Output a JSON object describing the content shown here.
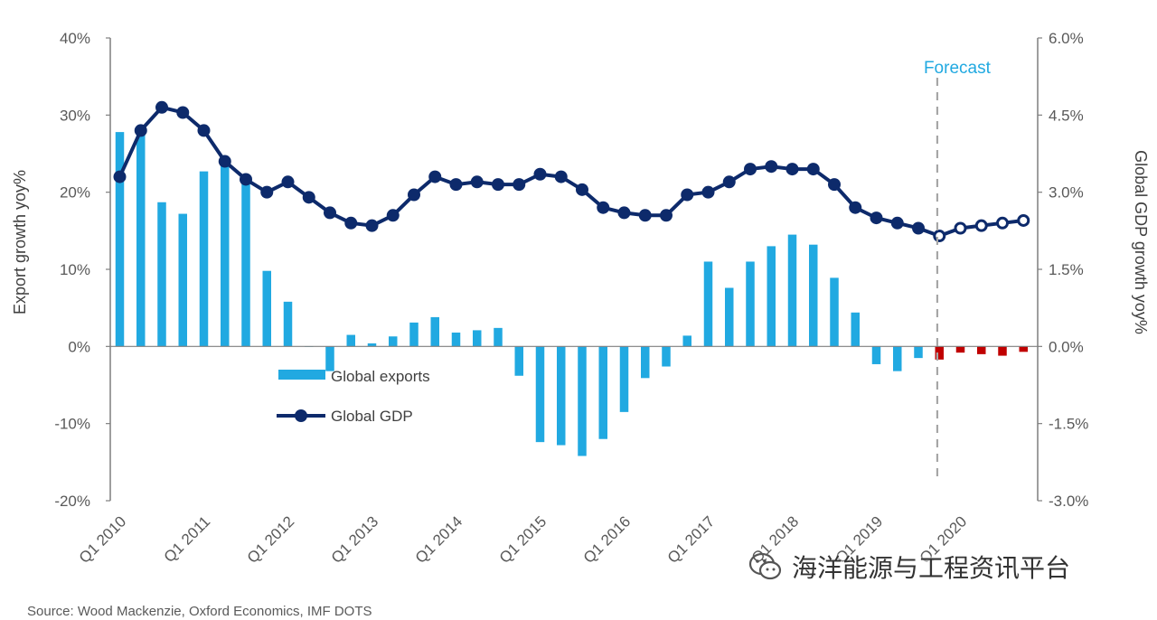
{
  "chart_data": {
    "type": "bar+line",
    "x_tick_labels": [
      "Q1 2010",
      "Q1 2011",
      "Q1 2012",
      "Q1 2013",
      "Q1 2014",
      "Q1 2015",
      "Q1 2016",
      "Q1 2017",
      "Q1 2018",
      "Q1 2019",
      "Q1 2020"
    ],
    "y_left": {
      "label": "Export growth yoy%",
      "ticks": [
        "40%",
        "30%",
        "20%",
        "10%",
        "0%",
        "-10%",
        "-20%"
      ],
      "range": [
        -20,
        40
      ]
    },
    "y_right": {
      "label": "Global GDP growth yoy%",
      "ticks": [
        "6.0%",
        "4.5%",
        "3.0%",
        "1.5%",
        "0.0%",
        "-1.5%",
        "-3.0%"
      ],
      "range": [
        -3.0,
        6.0
      ]
    },
    "forecast_label": "Forecast",
    "forecast_start_index": 39,
    "series": [
      {
        "name": "Global exports",
        "kind": "bar",
        "axis": "left",
        "color": "#21a9e1",
        "forecast_color": "#c00000",
        "values": [
          27.8,
          27.5,
          18.7,
          17.2,
          22.7,
          23.5,
          21.8,
          9.8,
          5.8,
          0,
          -3.2,
          1.5,
          0.4,
          1.3,
          3.1,
          3.8,
          1.8,
          2.1,
          2.4,
          -3.8,
          -12.4,
          -12.8,
          -14.2,
          -12,
          -8.5,
          -4.1,
          -2.6,
          1.4,
          11,
          7.6,
          11,
          13,
          14.5,
          13.2,
          8.9,
          4.4,
          -2.3,
          -3.2,
          -1.5,
          -1.7,
          -0.8,
          -1.0,
          -1.2,
          -0.7
        ]
      },
      {
        "name": "Global GDP",
        "kind": "line",
        "axis": "right",
        "color": "#0d2a6b",
        "values": [
          3.3,
          4.2,
          4.65,
          4.55,
          4.2,
          3.6,
          3.25,
          3.0,
          3.2,
          2.9,
          2.6,
          2.4,
          2.35,
          2.55,
          2.95,
          3.3,
          3.15,
          3.2,
          3.15,
          3.15,
          3.35,
          3.3,
          3.05,
          2.7,
          2.6,
          2.55,
          2.55,
          2.95,
          3.0,
          3.2,
          3.45,
          3.5,
          3.45,
          3.45,
          3.15,
          2.7,
          2.5,
          2.4,
          2.3,
          2.15,
          2.3,
          2.35,
          2.4,
          2.45
        ]
      }
    ],
    "legend_position": "left-middle",
    "grid": false
  },
  "source_text": "Source: Wood Mackenzie, Oxford Economics, IMF DOTS",
  "watermark_text": "海洋能源与工程资讯平台",
  "colors": {
    "axis": "#7f7f7f",
    "forecast_line": "#a6a6a6",
    "forecast_text": "#21a9e1"
  }
}
